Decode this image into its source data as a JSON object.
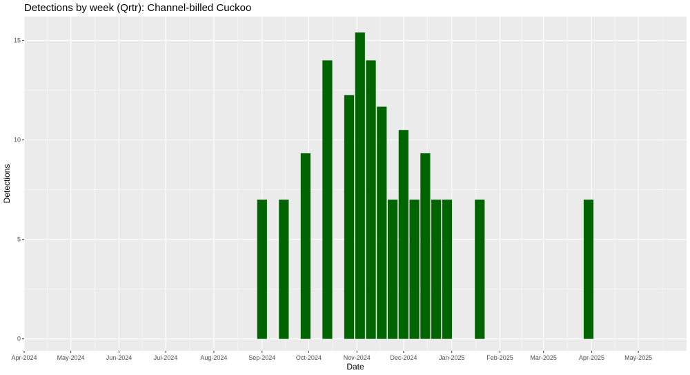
{
  "chart_data": {
    "type": "bar",
    "title": "Detections by week (Qrtr): Channel-billed Cuckoo",
    "xlabel": "Date",
    "ylabel": "Detections",
    "x_range": [
      "2024-04-01",
      "2025-06-01"
    ],
    "ylim": [
      -0.6,
      16.2
    ],
    "y_ticks": [
      0,
      5,
      10,
      15
    ],
    "x_ticks": [
      {
        "date": "2024-04-01",
        "label": "Apr-2024"
      },
      {
        "date": "2024-05-01",
        "label": "May-2024"
      },
      {
        "date": "2024-06-01",
        "label": "Jun-2024"
      },
      {
        "date": "2024-07-01",
        "label": "Jul-2024"
      },
      {
        "date": "2024-08-01",
        "label": "Aug-2024"
      },
      {
        "date": "2024-09-01",
        "label": "Sep-2024"
      },
      {
        "date": "2024-10-01",
        "label": "Oct-2024"
      },
      {
        "date": "2024-11-01",
        "label": "Nov-2024"
      },
      {
        "date": "2024-12-01",
        "label": "Dec-2024"
      },
      {
        "date": "2025-01-01",
        "label": "Jan-2025"
      },
      {
        "date": "2025-02-01",
        "label": "Feb-2025"
      },
      {
        "date": "2025-03-01",
        "label": "Mar-2025"
      },
      {
        "date": "2025-04-01",
        "label": "Apr-2025"
      },
      {
        "date": "2025-05-01",
        "label": "May-2025"
      }
    ],
    "bars": [
      {
        "date": "2024-09-01",
        "value": 7
      },
      {
        "date": "2024-09-15",
        "value": 7
      },
      {
        "date": "2024-09-29",
        "value": 9.33
      },
      {
        "date": "2024-10-13",
        "value": 14
      },
      {
        "date": "2024-10-27",
        "value": 12.25
      },
      {
        "date": "2024-11-03",
        "value": 15.4
      },
      {
        "date": "2024-11-10",
        "value": 14
      },
      {
        "date": "2024-11-17",
        "value": 11.67
      },
      {
        "date": "2024-11-24",
        "value": 7
      },
      {
        "date": "2024-12-01",
        "value": 10.5
      },
      {
        "date": "2024-12-08",
        "value": 7
      },
      {
        "date": "2024-12-15",
        "value": 9.33
      },
      {
        "date": "2024-12-22",
        "value": 7
      },
      {
        "date": "2024-12-29",
        "value": 7
      },
      {
        "date": "2025-01-19",
        "value": 7
      },
      {
        "date": "2025-03-30",
        "value": 7
      }
    ],
    "bar_color": "#006400",
    "panel_background": "#ebebeb",
    "grid_color": "#ffffff",
    "grid": true,
    "legend": "none"
  }
}
